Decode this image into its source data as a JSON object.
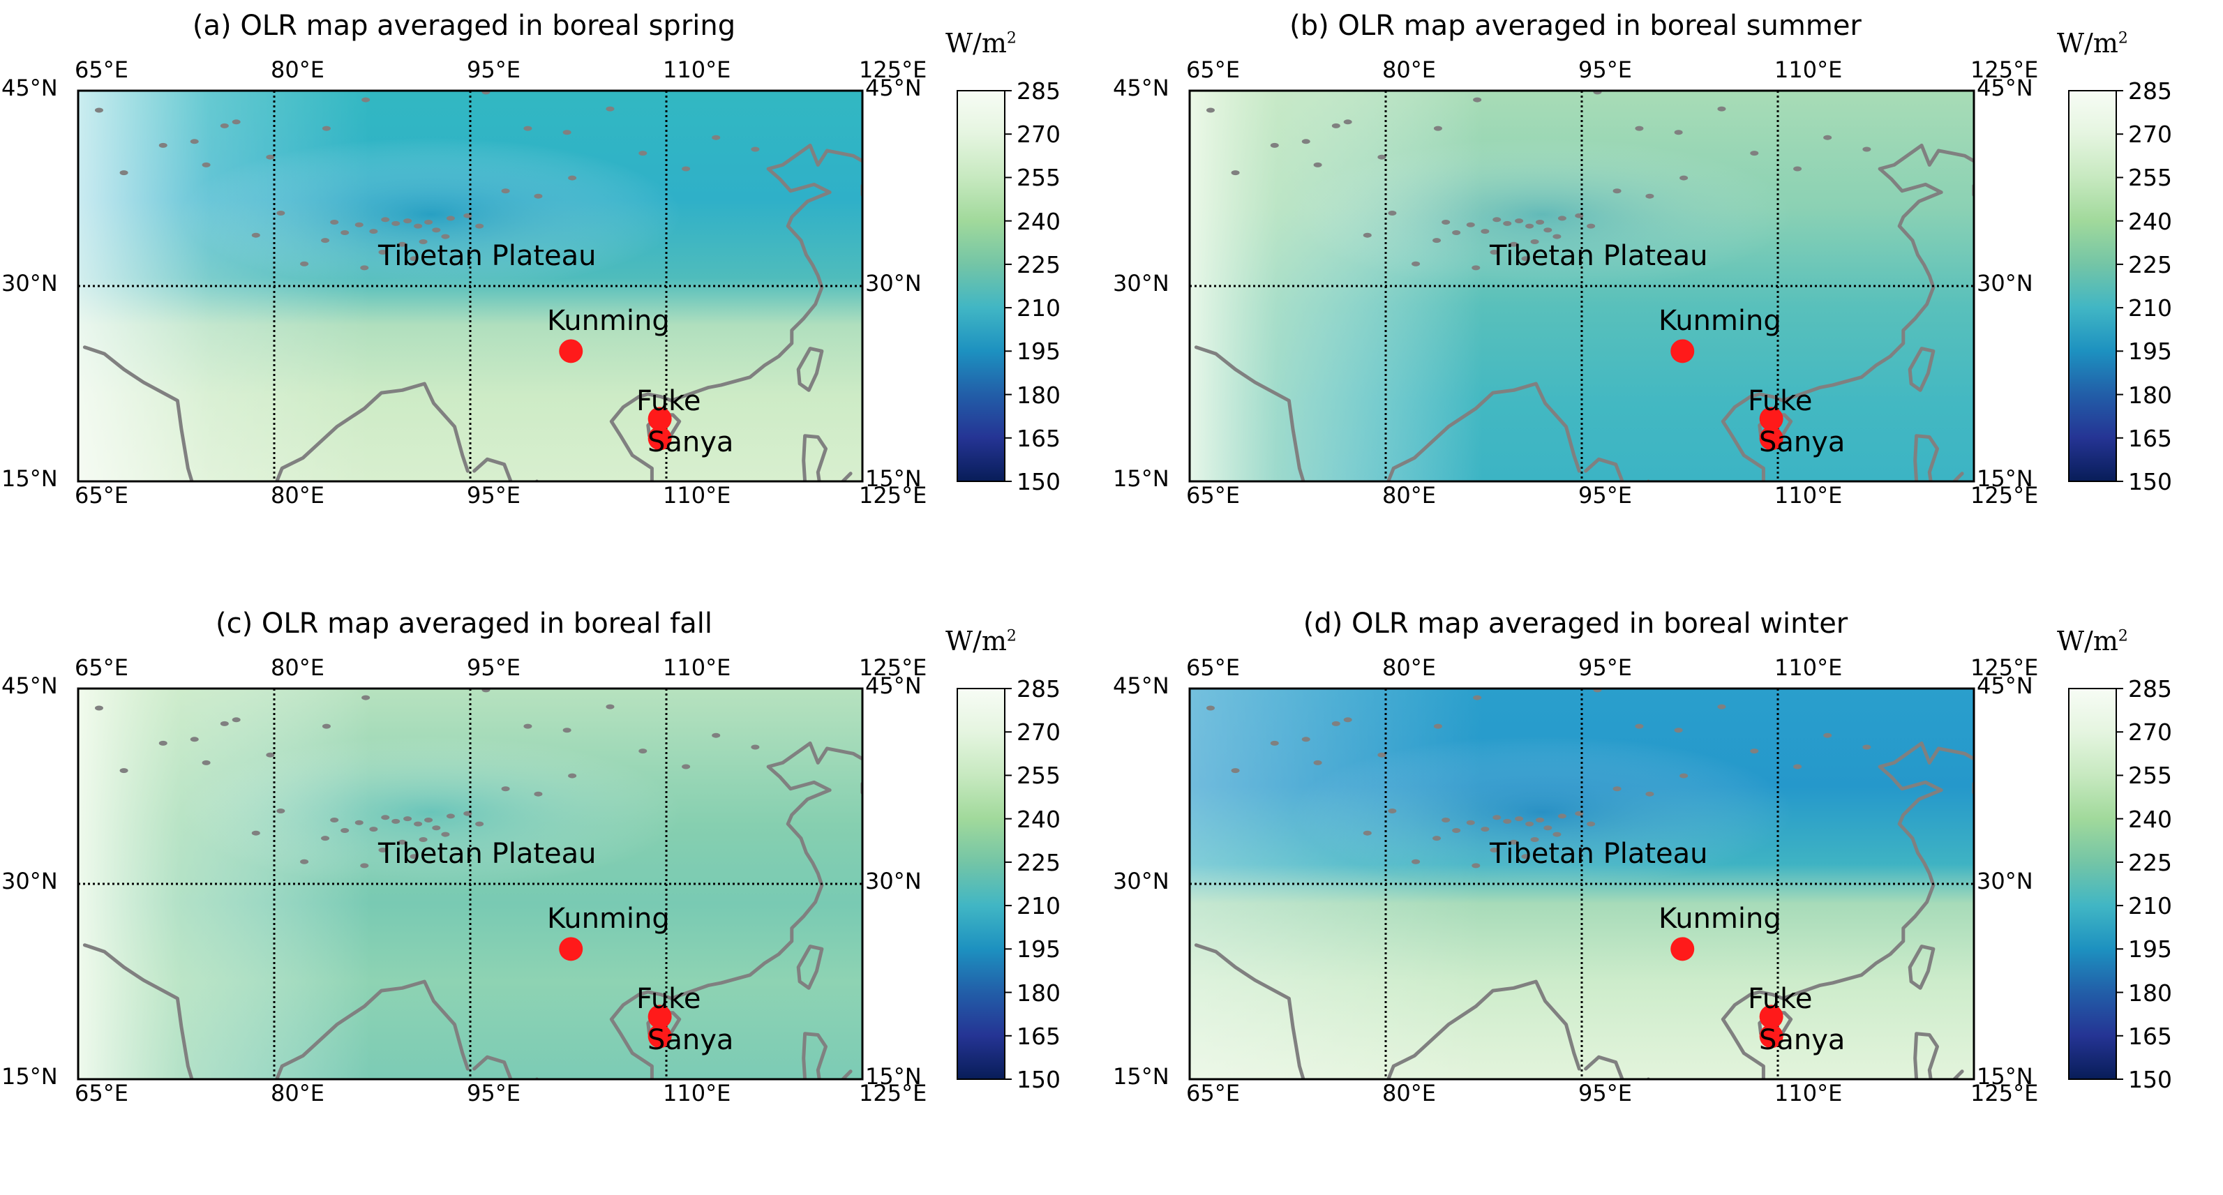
{
  "panels": [
    {
      "id": "a",
      "title": "(a) OLR map averaged in boreal spring",
      "season": "spring"
    },
    {
      "id": "b",
      "title": "(b) OLR map averaged in boreal summer",
      "season": "summer"
    },
    {
      "id": "c",
      "title": "(c) OLR map averaged in boreal fall",
      "season": "fall"
    },
    {
      "id": "d",
      "title": "(d) OLR map averaged in boreal winter",
      "season": "winter"
    }
  ],
  "lon_labels": [
    "65°E",
    "80°E",
    "95°E",
    "110°E",
    "125°E"
  ],
  "lat_labels": [
    "45°N",
    "30°N",
    "15°N"
  ],
  "unit": {
    "base": "W/m",
    "exp": "2"
  },
  "colorbar": {
    "ticks": [
      "285",
      "270",
      "255",
      "240",
      "225",
      "210",
      "195",
      "180",
      "165",
      "150"
    ],
    "colors": [
      "#f7fcf5",
      "#e5f5e0",
      "#c7e9c0",
      "#a1d99b",
      "#74c5a6",
      "#41b6c4",
      "#1d91c0",
      "#225ea8",
      "#253494",
      "#081d58"
    ]
  },
  "place_labels": {
    "plateau": "Tibetan Plateau",
    "kunming": "Kunming",
    "fuke": "Fuke",
    "sanya": "Sanya"
  },
  "marker_color": "#ff1a1a",
  "coast_color": "#808080"
}
